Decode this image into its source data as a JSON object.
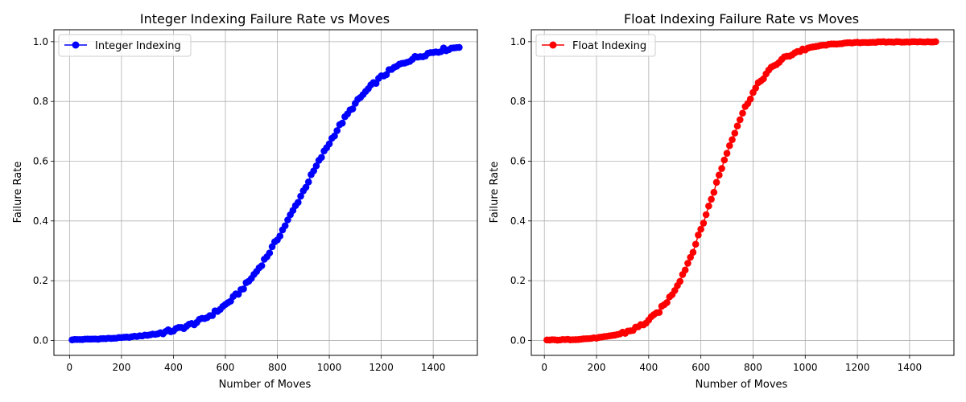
{
  "chart_data": [
    {
      "type": "line",
      "title": "Integer Indexing Failure Rate vs Moves",
      "xlabel": "Number of Moves",
      "ylabel": "Failure Rate",
      "xlim": [
        -60,
        1570
      ],
      "ylim": [
        -0.05,
        1.04
      ],
      "xticks": [
        0,
        200,
        400,
        600,
        800,
        1000,
        1200,
        1400
      ],
      "xtick_labels": [
        "0",
        "200",
        "400",
        "600",
        "800",
        "1000",
        "1200",
        "1400"
      ],
      "yticks": [
        0.0,
        0.2,
        0.4,
        0.6,
        0.8,
        1.0
      ],
      "ytick_labels": [
        "0.0",
        "0.2",
        "0.4",
        "0.6",
        "0.8",
        "1.0"
      ],
      "grid": true,
      "legend_position": "top-left",
      "color": "#0000ff",
      "marker": "circle",
      "series": [
        {
          "name": "Integer Indexing",
          "x_start": 10,
          "x_step": 10,
          "sigmoid": {
            "midpoint": 900,
            "scale": 150
          }
        }
      ]
    },
    {
      "type": "line",
      "title": "Float Indexing Failure Rate vs Moves",
      "xlabel": "Number of Moves",
      "ylabel": "Failure Rate",
      "xlim": [
        -50,
        1570
      ],
      "ylim": [
        -0.05,
        1.04
      ],
      "xticks": [
        0,
        200,
        400,
        600,
        800,
        1000,
        1200,
        1400
      ],
      "xtick_labels": [
        "0",
        "200",
        "400",
        "600",
        "800",
        "1000",
        "1200",
        "1400"
      ],
      "yticks": [
        0.0,
        0.2,
        0.4,
        0.6,
        0.8,
        1.0
      ],
      "ytick_labels": [
        "0.0",
        "0.2",
        "0.4",
        "0.6",
        "0.8",
        "1.0"
      ],
      "grid": true,
      "legend_position": "top-left",
      "color": "#ff0000",
      "marker": "circle",
      "series": [
        {
          "name": "Float Indexing",
          "x_start": 10,
          "x_step": 10,
          "sigmoid": {
            "midpoint": 650,
            "scale": 95
          }
        }
      ]
    }
  ]
}
